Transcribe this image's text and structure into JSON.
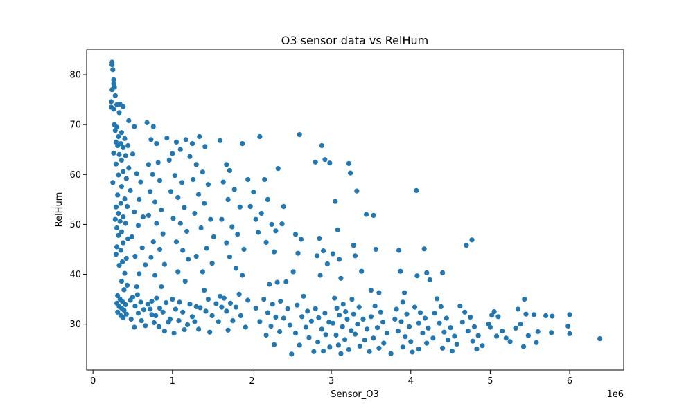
{
  "chart_data": {
    "type": "scatter",
    "title": "O3 sensor data vs RelHum",
    "xlabel": "Sensor_O3",
    "ylabel": "RelHum",
    "x_offset_label": "1e6",
    "x_scale": 1000000,
    "xlim": [
      -0.08,
      6.68
    ],
    "ylim": [
      20.8,
      85.0
    ],
    "xticks": [
      0,
      1,
      2,
      3,
      4,
      5,
      6
    ],
    "yticks": [
      30,
      40,
      50,
      60,
      70,
      80
    ],
    "grid": false,
    "legend": "none",
    "marker_color": "#1f77b4",
    "points": [
      [
        0.24,
        82.5
      ],
      [
        0.24,
        82.0
      ],
      [
        0.25,
        81.0
      ],
      [
        0.26,
        79.0
      ],
      [
        0.26,
        78.2
      ],
      [
        0.27,
        77.5
      ],
      [
        0.24,
        77.0
      ],
      [
        0.28,
        75.8
      ],
      [
        0.23,
        74.6
      ],
      [
        0.3,
        74.0
      ],
      [
        0.23,
        73.5
      ],
      [
        0.26,
        73.1
      ],
      [
        0.34,
        74.1
      ],
      [
        0.38,
        73.6
      ],
      [
        0.33,
        72.4
      ],
      [
        0.27,
        70.0
      ],
      [
        0.3,
        69.5
      ],
      [
        0.36,
        68.4
      ],
      [
        0.28,
        68.8
      ],
      [
        0.32,
        67.6
      ],
      [
        0.4,
        67.2
      ],
      [
        0.29,
        66.5
      ],
      [
        0.35,
        66.2
      ],
      [
        0.31,
        65.8
      ],
      [
        0.38,
        65.4
      ],
      [
        0.44,
        65.8
      ],
      [
        0.26,
        64.3
      ],
      [
        0.33,
        64.0
      ],
      [
        0.41,
        63.8
      ],
      [
        0.36,
        62.9
      ],
      [
        0.29,
        62.1
      ],
      [
        0.45,
        61.3
      ],
      [
        0.38,
        60.6
      ],
      [
        0.32,
        59.9
      ],
      [
        0.42,
        59.2
      ],
      [
        0.25,
        58.4
      ],
      [
        0.36,
        57.6
      ],
      [
        0.47,
        56.8
      ],
      [
        0.31,
        55.9
      ],
      [
        0.4,
        55.1
      ],
      [
        0.35,
        54.2
      ],
      [
        0.29,
        53.5
      ],
      [
        0.43,
        53.6
      ],
      [
        0.32,
        52.2
      ],
      [
        0.38,
        51.5
      ],
      [
        0.28,
        51.0
      ],
      [
        0.34,
        50.6
      ],
      [
        0.41,
        50.2
      ],
      [
        0.3,
        49.3
      ],
      [
        0.36,
        48.5
      ],
      [
        0.32,
        47.8
      ],
      [
        0.44,
        47.1
      ],
      [
        0.38,
        46.3
      ],
      [
        0.3,
        45.5
      ],
      [
        0.35,
        44.8
      ],
      [
        0.29,
        44.0
      ],
      [
        0.42,
        43.2
      ],
      [
        0.37,
        42.5
      ],
      [
        0.33,
        41.8
      ],
      [
        0.4,
        40.2
      ],
      [
        0.36,
        38.6
      ],
      [
        0.43,
        37.8
      ],
      [
        0.39,
        36.9
      ],
      [
        0.31,
        35.7
      ],
      [
        0.34,
        35.0
      ],
      [
        0.37,
        34.5
      ],
      [
        0.3,
        34.2
      ],
      [
        0.41,
        33.9
      ],
      [
        0.33,
        33.5
      ],
      [
        0.36,
        33.2
      ],
      [
        0.39,
        32.8
      ],
      [
        0.31,
        32.4
      ],
      [
        0.42,
        32.0
      ],
      [
        0.35,
        31.7
      ],
      [
        0.38,
        31.3
      ],
      [
        0.45,
        70.8
      ],
      [
        0.52,
        69.6
      ],
      [
        0.5,
        64.1
      ],
      [
        0.55,
        60.2
      ],
      [
        0.6,
        58.5
      ],
      [
        0.58,
        55.0
      ],
      [
        0.52,
        52.5
      ],
      [
        0.63,
        51.5
      ],
      [
        0.57,
        49.8
      ],
      [
        0.49,
        47.5
      ],
      [
        0.62,
        45.3
      ],
      [
        0.53,
        43.6
      ],
      [
        0.66,
        41.9
      ],
      [
        0.58,
        40.1
      ],
      [
        0.55,
        37.5
      ],
      [
        0.5,
        35.4
      ],
      [
        0.6,
        34.4
      ],
      [
        0.53,
        33.6
      ],
      [
        0.64,
        32.9
      ],
      [
        0.57,
        32.2
      ],
      [
        0.48,
        31.0
      ],
      [
        0.61,
        30.7
      ],
      [
        0.66,
        29.7
      ],
      [
        0.52,
        29.4
      ],
      [
        0.56,
        35.9
      ],
      [
        0.47,
        34.8
      ],
      [
        0.69,
        34.0
      ],
      [
        0.72,
        33.0
      ],
      [
        0.74,
        31.9
      ],
      [
        0.77,
        30.3
      ],
      [
        0.68,
        70.4
      ],
      [
        0.76,
        69.6
      ],
      [
        0.73,
        67.0
      ],
      [
        0.8,
        66.2
      ],
      [
        0.7,
        62.0
      ],
      [
        0.82,
        62.4
      ],
      [
        0.75,
        60.0
      ],
      [
        0.84,
        58.8
      ],
      [
        0.72,
        56.6
      ],
      [
        0.78,
        54.5
      ],
      [
        0.86,
        52.9
      ],
      [
        0.7,
        51.8
      ],
      [
        0.8,
        50.2
      ],
      [
        0.88,
        48.1
      ],
      [
        0.76,
        46.5
      ],
      [
        0.84,
        45.0
      ],
      [
        0.73,
        43.4
      ],
      [
        0.9,
        42.0
      ],
      [
        0.78,
        39.8
      ],
      [
        0.86,
        37.5
      ],
      [
        0.8,
        35.2
      ],
      [
        0.74,
        34.6
      ],
      [
        0.92,
        34.3
      ],
      [
        0.84,
        33.2
      ],
      [
        0.88,
        32.4
      ],
      [
        0.79,
        31.7
      ],
      [
        0.95,
        30.4
      ],
      [
        0.83,
        29.5
      ],
      [
        0.9,
        28.6
      ],
      [
        0.97,
        31.0
      ],
      [
        0.93,
        67.3
      ],
      [
        1.0,
        64.2
      ],
      [
        0.96,
        62.9
      ],
      [
        1.05,
        66.5
      ],
      [
        1.1,
        65.0
      ],
      [
        1.03,
        59.8
      ],
      [
        1.12,
        58.4
      ],
      [
        0.98,
        56.6
      ],
      [
        1.07,
        55.4
      ],
      [
        1.15,
        53.4
      ],
      [
        1.01,
        51.2
      ],
      [
        1.1,
        50.2
      ],
      [
        1.18,
        48.6
      ],
      [
        1.05,
        46.5
      ],
      [
        1.13,
        44.8
      ],
      [
        1.2,
        43.0
      ],
      [
        1.07,
        40.5
      ],
      [
        1.16,
        38.6
      ],
      [
        1.0,
        35.0
      ],
      [
        1.09,
        34.4
      ],
      [
        1.22,
        34.0
      ],
      [
        1.04,
        33.0
      ],
      [
        1.13,
        32.4
      ],
      [
        1.25,
        31.5
      ],
      [
        1.08,
        30.7
      ],
      [
        1.19,
        29.9
      ],
      [
        1.02,
        28.2
      ],
      [
        1.28,
        30.5
      ],
      [
        1.15,
        28.9
      ],
      [
        1.3,
        33.5
      ],
      [
        1.17,
        67.0
      ],
      [
        1.25,
        66.2
      ],
      [
        1.34,
        67.6
      ],
      [
        1.41,
        65.6
      ],
      [
        1.22,
        63.6
      ],
      [
        1.3,
        62.0
      ],
      [
        1.38,
        60.5
      ],
      [
        1.26,
        59.0
      ],
      [
        1.45,
        58.0
      ],
      [
        1.33,
        56.0
      ],
      [
        1.4,
        54.2
      ],
      [
        1.28,
        52.2
      ],
      [
        1.48,
        51.0
      ],
      [
        1.36,
        49.3
      ],
      [
        1.52,
        47.5
      ],
      [
        1.43,
        45.2
      ],
      [
        1.3,
        43.6
      ],
      [
        1.5,
        42.2
      ],
      [
        1.38,
        40.5
      ],
      [
        1.45,
        35.0
      ],
      [
        1.55,
        34.1
      ],
      [
        1.35,
        33.3
      ],
      [
        1.42,
        32.6
      ],
      [
        1.5,
        31.7
      ],
      [
        1.58,
        30.5
      ],
      [
        1.33,
        29.0
      ],
      [
        1.47,
        28.4
      ],
      [
        1.6,
        35.6
      ],
      [
        1.62,
        33.4
      ],
      [
        1.4,
        36.8
      ],
      [
        1.6,
        66.8
      ],
      [
        1.68,
        62.0
      ],
      [
        1.72,
        60.8
      ],
      [
        1.64,
        58.5
      ],
      [
        1.78,
        57.0
      ],
      [
        1.7,
        55.0
      ],
      [
        1.85,
        53.5
      ],
      [
        1.62,
        51.0
      ],
      [
        1.75,
        49.5
      ],
      [
        1.82,
        48.0
      ],
      [
        1.68,
        46.3
      ],
      [
        1.9,
        45.0
      ],
      [
        1.72,
        43.5
      ],
      [
        1.8,
        41.2
      ],
      [
        1.88,
        39.8
      ],
      [
        1.65,
        35.2
      ],
      [
        1.73,
        34.2
      ],
      [
        1.8,
        33.4
      ],
      [
        1.68,
        32.6
      ],
      [
        1.86,
        31.7
      ],
      [
        1.76,
        30.7
      ],
      [
        1.92,
        29.4
      ],
      [
        1.7,
        28.8
      ],
      [
        1.84,
        36.0
      ],
      [
        1.95,
        34.8
      ],
      [
        1.88,
        66.2
      ],
      [
        1.95,
        59.0
      ],
      [
        2.02,
        56.5
      ],
      [
        1.98,
        53.6
      ],
      [
        2.05,
        51.0
      ],
      [
        2.1,
        67.6
      ],
      [
        2.16,
        59.0
      ],
      [
        2.2,
        55.0
      ],
      [
        2.12,
        52.2
      ],
      [
        2.25,
        50.0
      ],
      [
        2.08,
        48.4
      ],
      [
        2.18,
        46.4
      ],
      [
        2.28,
        44.5
      ],
      [
        2.22,
        38.0
      ],
      [
        2.32,
        38.4
      ],
      [
        2.15,
        35.0
      ],
      [
        2.26,
        34.0
      ],
      [
        2.05,
        33.2
      ],
      [
        2.2,
        32.3
      ],
      [
        2.3,
        31.4
      ],
      [
        2.1,
        30.5
      ],
      [
        2.24,
        29.6
      ],
      [
        2.35,
        28.5
      ],
      [
        2.18,
        27.8
      ],
      [
        2.28,
        25.9
      ],
      [
        2.33,
        61.2
      ],
      [
        2.4,
        53.6
      ],
      [
        2.38,
        50.1
      ],
      [
        2.3,
        48.7
      ],
      [
        2.43,
        38.5
      ],
      [
        2.36,
        34.6
      ],
      [
        2.45,
        33.1
      ],
      [
        2.4,
        31.2
      ],
      [
        2.48,
        29.8
      ],
      [
        2.5,
        24.0
      ],
      [
        2.6,
        68.0
      ],
      [
        2.55,
        48.0
      ],
      [
        2.62,
        47.0
      ],
      [
        2.58,
        44.2
      ],
      [
        2.52,
        40.5
      ],
      [
        2.65,
        35.6
      ],
      [
        2.57,
        33.8
      ],
      [
        2.7,
        32.6
      ],
      [
        2.63,
        31.5
      ],
      [
        2.75,
        30.6
      ],
      [
        2.68,
        29.4
      ],
      [
        2.55,
        28.2
      ],
      [
        2.72,
        27.3
      ],
      [
        2.6,
        25.8
      ],
      [
        2.78,
        24.5
      ],
      [
        2.8,
        62.5
      ],
      [
        2.88,
        65.8
      ],
      [
        2.92,
        63.0
      ],
      [
        2.98,
        62.3
      ],
      [
        2.85,
        47.2
      ],
      [
        2.9,
        44.7
      ],
      [
        2.82,
        43.7
      ],
      [
        2.95,
        42.1
      ],
      [
        2.86,
        39.8
      ],
      [
        2.8,
        33.1
      ],
      [
        2.92,
        32.2
      ],
      [
        2.84,
        31.3
      ],
      [
        2.97,
        30.4
      ],
      [
        2.88,
        29.0
      ],
      [
        2.93,
        27.9
      ],
      [
        2.83,
        26.4
      ],
      [
        2.98,
        25.4
      ],
      [
        2.9,
        24.6
      ],
      [
        3.05,
        54.6
      ],
      [
        3.08,
        48.9
      ],
      [
        3.02,
        44.1
      ],
      [
        3.1,
        43.0
      ],
      [
        3.12,
        39.2
      ],
      [
        3.04,
        35.2
      ],
      [
        3.15,
        34.0
      ],
      [
        3.07,
        33.2
      ],
      [
        3.18,
        32.5
      ],
      [
        3.1,
        31.8
      ],
      [
        3.2,
        31.0
      ],
      [
        3.02,
        30.2
      ],
      [
        3.14,
        29.5
      ],
      [
        3.25,
        28.7
      ],
      [
        3.06,
        27.8
      ],
      [
        3.17,
        26.9
      ],
      [
        3.09,
        25.8
      ],
      [
        3.22,
        24.9
      ],
      [
        3.12,
        24.1
      ],
      [
        3.22,
        62.2
      ],
      [
        3.24,
        60.3
      ],
      [
        3.28,
        45.8
      ],
      [
        3.3,
        43.7
      ],
      [
        3.32,
        56.7
      ],
      [
        3.38,
        40.6
      ],
      [
        3.26,
        35.0
      ],
      [
        3.35,
        33.4
      ],
      [
        3.28,
        32.0
      ],
      [
        3.4,
        31.0
      ],
      [
        3.33,
        30.0
      ],
      [
        3.45,
        29.0
      ],
      [
        3.3,
        28.0
      ],
      [
        3.42,
        26.8
      ],
      [
        3.36,
        25.6
      ],
      [
        3.48,
        24.5
      ],
      [
        3.44,
        52.0
      ],
      [
        3.53,
        51.8
      ],
      [
        3.56,
        45.0
      ],
      [
        3.5,
        36.8
      ],
      [
        3.6,
        36.3
      ],
      [
        3.55,
        33.6
      ],
      [
        3.62,
        32.4
      ],
      [
        3.5,
        31.5
      ],
      [
        3.65,
        30.4
      ],
      [
        3.58,
        29.3
      ],
      [
        3.7,
        28.2
      ],
      [
        3.53,
        27.2
      ],
      [
        3.66,
        26.2
      ],
      [
        3.6,
        25.2
      ],
      [
        3.75,
        24.1
      ],
      [
        3.8,
        31.0
      ],
      [
        3.85,
        44.8
      ],
      [
        3.87,
        40.6
      ],
      [
        3.92,
        36.3
      ],
      [
        3.9,
        34.4
      ],
      [
        3.82,
        33.0
      ],
      [
        3.95,
        32.0
      ],
      [
        3.88,
        30.5
      ],
      [
        3.98,
        29.5
      ],
      [
        3.84,
        28.6
      ],
      [
        3.93,
        27.5
      ],
      [
        4.0,
        26.5
      ],
      [
        3.9,
        25.4
      ],
      [
        4.02,
        24.4
      ],
      [
        4.07,
        56.8
      ],
      [
        4.08,
        39.7
      ],
      [
        4.2,
        40.3
      ],
      [
        4.24,
        38.9
      ],
      [
        4.17,
        45.1
      ],
      [
        4.05,
        33.4
      ],
      [
        4.12,
        32.3
      ],
      [
        4.18,
        31.2
      ],
      [
        4.1,
        30.2
      ],
      [
        4.22,
        29.2
      ],
      [
        4.15,
        28.2
      ],
      [
        4.28,
        27.2
      ],
      [
        4.2,
        26.2
      ],
      [
        4.1,
        25.0
      ],
      [
        4.4,
        40.3
      ],
      [
        4.33,
        35.1
      ],
      [
        4.38,
        33.5
      ],
      [
        4.3,
        32.2
      ],
      [
        4.45,
        31.2
      ],
      [
        4.36,
        30.2
      ],
      [
        4.5,
        29.3
      ],
      [
        4.42,
        28.4
      ],
      [
        4.55,
        27.6
      ],
      [
        4.47,
        26.8
      ],
      [
        4.58,
        26.0
      ],
      [
        4.4,
        25.2
      ],
      [
        4.52,
        24.6
      ],
      [
        4.7,
        45.8
      ],
      [
        4.77,
        46.9
      ],
      [
        4.62,
        33.6
      ],
      [
        4.68,
        32.4
      ],
      [
        4.75,
        31.4
      ],
      [
        4.65,
        30.4
      ],
      [
        4.8,
        29.5
      ],
      [
        4.72,
        28.6
      ],
      [
        4.85,
        27.7
      ],
      [
        4.78,
        26.6
      ],
      [
        4.9,
        25.7
      ],
      [
        4.83,
        25.0
      ],
      [
        4.98,
        30.0
      ],
      [
        5.02,
        31.8
      ],
      [
        5.05,
        32.5
      ],
      [
        5.1,
        31.5
      ],
      [
        5.0,
        29.4
      ],
      [
        5.15,
        28.6
      ],
      [
        5.08,
        27.6
      ],
      [
        5.2,
        27.2
      ],
      [
        5.25,
        26.5
      ],
      [
        5.32,
        29.2
      ],
      [
        5.35,
        33.0
      ],
      [
        5.38,
        30.0
      ],
      [
        5.43,
        35.0
      ],
      [
        5.45,
        32.0
      ],
      [
        5.48,
        27.7
      ],
      [
        5.42,
        25.5
      ],
      [
        5.55,
        31.9
      ],
      [
        5.6,
        28.5
      ],
      [
        5.58,
        26.3
      ],
      [
        5.7,
        31.7
      ],
      [
        5.78,
        31.6
      ],
      [
        5.77,
        28.3
      ],
      [
        6.0,
        31.9
      ],
      [
        5.98,
        29.6
      ],
      [
        6.0,
        28.1
      ],
      [
        6.38,
        27.1
      ]
    ]
  }
}
